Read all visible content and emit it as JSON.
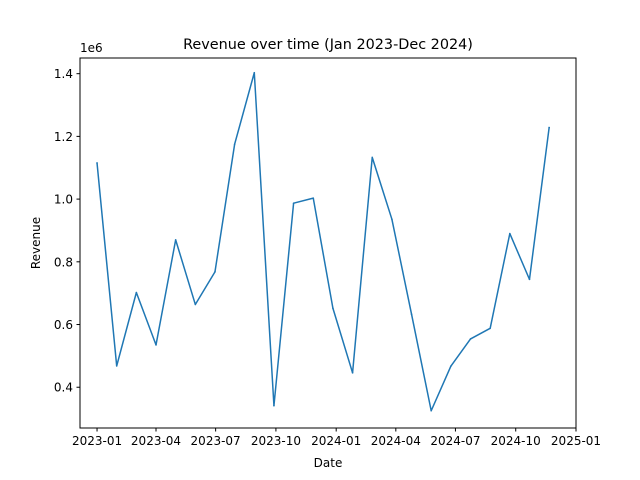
{
  "chart_data": {
    "type": "line",
    "title": "Revenue over time (Jan 2023-Dec 2024)",
    "xlabel": "Date",
    "ylabel": "Revenue",
    "y_multiplier_label": "1e6",
    "color": "#1f77b4",
    "grid": false,
    "x_ticks": [
      {
        "date": "2023-01-01",
        "label": "2023-01"
      },
      {
        "date": "2023-04-01",
        "label": "2023-04"
      },
      {
        "date": "2023-07-01",
        "label": "2023-07"
      },
      {
        "date": "2023-10-01",
        "label": "2023-10"
      },
      {
        "date": "2024-01-01",
        "label": "2024-01"
      },
      {
        "date": "2024-04-01",
        "label": "2024-04"
      },
      {
        "date": "2024-07-01",
        "label": "2024-07"
      },
      {
        "date": "2024-10-01",
        "label": "2024-10"
      },
      {
        "date": "2025-01-01",
        "label": "2025-01"
      }
    ],
    "y_ticks": [
      {
        "value": 400000,
        "label": "0.4"
      },
      {
        "value": 600000,
        "label": "0.6"
      },
      {
        "value": 800000,
        "label": "0.8"
      },
      {
        "value": 1000000,
        "label": "1.0"
      },
      {
        "value": 1200000,
        "label": "1.2"
      },
      {
        "value": 1400000,
        "label": "1.4"
      }
    ],
    "xlim": [
      "2022-12-06",
      "2025-01-01"
    ],
    "ylim": [
      270000,
      1450000
    ],
    "series": [
      {
        "x": [
          "2023-01-01",
          "2023-01-31",
          "2023-03-02",
          "2023-04-01",
          "2023-05-01",
          "2023-05-31",
          "2023-06-30",
          "2023-07-30",
          "2023-08-29",
          "2023-09-28",
          "2023-10-28",
          "2023-11-27",
          "2023-12-27",
          "2024-01-26",
          "2024-02-25",
          "2024-03-26",
          "2024-04-25",
          "2024-05-25",
          "2024-06-24",
          "2024-07-24",
          "2024-08-23",
          "2024-09-22",
          "2024-10-22",
          "2024-11-21"
        ],
        "values": [
          1115000,
          468000,
          702000,
          535000,
          870000,
          664000,
          768000,
          1175000,
          1403000,
          341000,
          987000,
          1003000,
          652000,
          446000,
          1133000,
          936000,
          633000,
          325000,
          467000,
          554000,
          588000,
          890000,
          744000,
          1228000
        ]
      }
    ]
  }
}
